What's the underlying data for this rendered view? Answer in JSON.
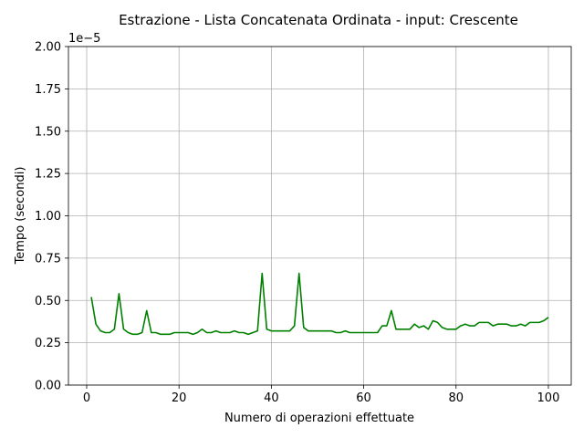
{
  "chart_data": {
    "type": "line",
    "title": "Estrazione - Lista Concatenata Ordinata - input: Crescente",
    "xlabel": "Numero di operazioni effettuate",
    "ylabel": "Tempo (secondi)",
    "y_offset_label": "1e−5",
    "xlim": [
      -3.95,
      104.95
    ],
    "ylim": [
      0,
      2e-05
    ],
    "x_ticks": [
      0,
      20,
      40,
      60,
      80,
      100
    ],
    "x_tick_labels": [
      "0",
      "20",
      "40",
      "60",
      "80",
      "100"
    ],
    "y_ticks": [
      0,
      0.25,
      0.5,
      0.75,
      1.0,
      1.25,
      1.5,
      1.75,
      2.0
    ],
    "y_tick_labels": [
      "0.00",
      "0.25",
      "0.50",
      "0.75",
      "1.00",
      "1.25",
      "1.50",
      "1.75",
      "2.00"
    ],
    "y_scale": 1e-05,
    "grid": true,
    "series": [
      {
        "color": "#008000",
        "x": [
          1,
          2,
          3,
          4,
          5,
          6,
          7,
          8,
          9,
          10,
          11,
          12,
          13,
          14,
          15,
          16,
          17,
          18,
          19,
          20,
          21,
          22,
          23,
          24,
          25,
          26,
          27,
          28,
          29,
          30,
          31,
          32,
          33,
          34,
          35,
          36,
          37,
          38,
          39,
          40,
          41,
          42,
          43,
          44,
          45,
          46,
          47,
          48,
          49,
          50,
          51,
          52,
          53,
          54,
          55,
          56,
          57,
          58,
          59,
          60,
          61,
          62,
          63,
          64,
          65,
          66,
          67,
          68,
          69,
          70,
          71,
          72,
          73,
          74,
          75,
          76,
          77,
          78,
          79,
          80,
          81,
          82,
          83,
          84,
          85,
          86,
          87,
          88,
          89,
          90,
          91,
          92,
          93,
          94,
          95,
          96,
          97,
          98,
          99,
          100
        ],
        "y": [
          0.52,
          0.36,
          0.32,
          0.31,
          0.31,
          0.33,
          0.54,
          0.33,
          0.31,
          0.3,
          0.3,
          0.31,
          0.44,
          0.31,
          0.31,
          0.3,
          0.3,
          0.3,
          0.31,
          0.31,
          0.31,
          0.31,
          0.3,
          0.31,
          0.33,
          0.31,
          0.31,
          0.32,
          0.31,
          0.31,
          0.31,
          0.32,
          0.31,
          0.31,
          0.3,
          0.31,
          0.32,
          0.66,
          0.33,
          0.32,
          0.32,
          0.32,
          0.32,
          0.32,
          0.35,
          0.66,
          0.34,
          0.32,
          0.32,
          0.32,
          0.32,
          0.32,
          0.32,
          0.31,
          0.31,
          0.32,
          0.31,
          0.31,
          0.31,
          0.31,
          0.31,
          0.31,
          0.31,
          0.35,
          0.35,
          0.44,
          0.33,
          0.33,
          0.33,
          0.33,
          0.36,
          0.34,
          0.35,
          0.33,
          0.38,
          0.37,
          0.34,
          0.33,
          0.33,
          0.33,
          0.35,
          0.36,
          0.35,
          0.35,
          0.37,
          0.37,
          0.37,
          0.35,
          0.36,
          0.36,
          0.36,
          0.35,
          0.35,
          0.36,
          0.35,
          0.37,
          0.37,
          0.37,
          0.38,
          0.4
        ]
      }
    ]
  }
}
